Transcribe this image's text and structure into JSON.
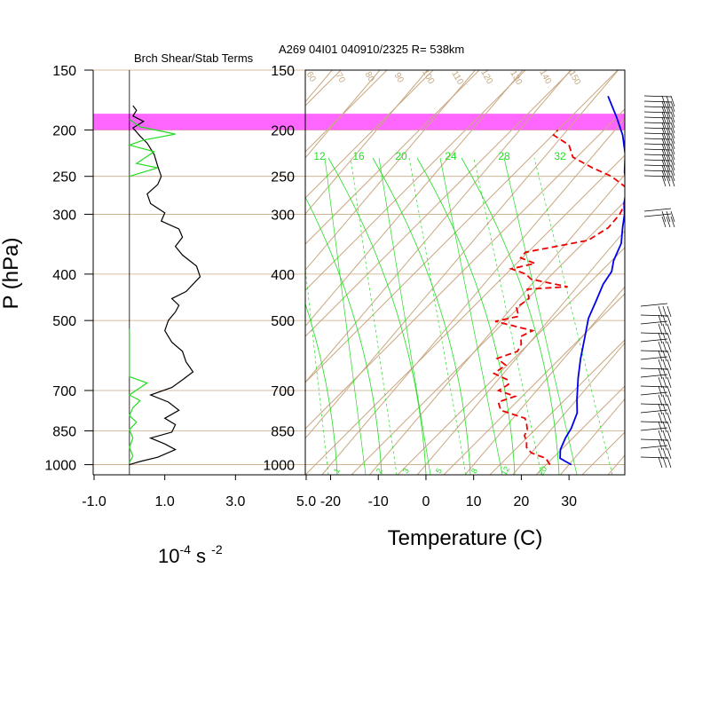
{
  "header": {
    "left_title": "Brch Shear/Stab Terms",
    "right_title": "A269 04I01 040910/2325 R= 538km"
  },
  "axes": {
    "p_label": "P (hPa)",
    "left_x_label_base": "10",
    "left_x_label_exp1": "-4",
    "left_x_label_unit": " s ",
    "left_x_label_exp2": "-2",
    "right_x_label": "Temperature (C)"
  },
  "colors": {
    "isotherm": "#c8a882",
    "mixing_ratio": "#22dd22",
    "temperature": "#0000ee",
    "dewpoint": "#ee0000",
    "highlight": "#ff55ff",
    "shear": "#000000",
    "stability": "#22dd22"
  },
  "chart_data": [
    {
      "type": "line",
      "panel": "left",
      "title": "Brch Shear/Stab Terms",
      "ylabel": "P (hPa)",
      "y_scale": "log",
      "ylim": [
        1050,
        150
      ],
      "y_ticks": [
        "150",
        "200",
        "250",
        "300",
        "400",
        "500",
        "700",
        "850",
        "1000"
      ],
      "x_ticks": [
        "-1.0",
        "1.0",
        "3.0",
        "5.0"
      ],
      "xlim": [
        -1.0,
        5.0
      ],
      "series": [
        {
          "color": "#000000",
          "points": [
            [
              0.0,
              1000
            ],
            [
              0.3,
              985
            ],
            [
              0.8,
              965
            ],
            [
              1.3,
              930
            ],
            [
              1.0,
              905
            ],
            [
              0.6,
              880
            ],
            [
              1.2,
              855
            ],
            [
              1.3,
              825
            ],
            [
              1.0,
              800
            ],
            [
              1.4,
              770
            ],
            [
              1.1,
              740
            ],
            [
              0.6,
              715
            ],
            [
              1.2,
              690
            ],
            [
              1.5,
              665
            ],
            [
              1.8,
              640
            ],
            [
              1.6,
              610
            ],
            [
              1.5,
              580
            ],
            [
              1.2,
              555
            ],
            [
              1.0,
              525
            ],
            [
              1.1,
              500
            ],
            [
              1.3,
              480
            ],
            [
              1.4,
              465
            ],
            [
              1.2,
              450
            ],
            [
              1.6,
              435
            ],
            [
              2.0,
              405
            ],
            [
              1.9,
              385
            ],
            [
              1.5,
              365
            ],
            [
              1.3,
              350
            ],
            [
              1.5,
              335
            ],
            [
              1.4,
              322
            ],
            [
              0.9,
              310
            ],
            [
              1.0,
              298
            ],
            [
              0.6,
              285
            ],
            [
              0.5,
              272
            ],
            [
              0.8,
              260
            ],
            [
              0.9,
              250
            ],
            [
              0.8,
              238
            ],
            [
              0.7,
              225
            ],
            [
              0.5,
              213
            ],
            [
              0.3,
              206
            ],
            [
              0.1,
              198
            ],
            [
              0.4,
              192
            ],
            [
              0.1,
              187
            ],
            [
              0.2,
              182
            ],
            [
              0.1,
              178
            ]
          ]
        },
        {
          "color": "#22dd22",
          "points": [
            [
              0.0,
              990
            ],
            [
              0.1,
              960
            ],
            [
              0.0,
              920
            ],
            [
              0.1,
              880
            ],
            [
              0.0,
              845
            ],
            [
              0.2,
              815
            ],
            [
              0.0,
              790
            ],
            [
              0.1,
              760
            ],
            [
              0.3,
              735
            ],
            [
              0.0,
              715
            ],
            [
              0.5,
              675
            ],
            [
              0.0,
              655
            ],
            [
              0.0,
              520
            ]
          ]
        },
        {
          "color": "#22dd22",
          "points": [
            [
              0.0,
              250
            ],
            [
              0.8,
              240
            ],
            [
              0.2,
              235
            ],
            [
              0.7,
              222
            ],
            [
              0.0,
              215
            ],
            [
              0.4,
              210
            ],
            [
              1.3,
              204
            ],
            [
              0.3,
              197
            ],
            [
              0.0,
              190
            ]
          ]
        }
      ],
      "highlight_band_hpa": [
        200,
        185
      ]
    },
    {
      "type": "line",
      "panel": "right",
      "title": "A269 04I01 040910/2325 R= 538km",
      "xlabel": "Temperature (C)",
      "y_scale": "log",
      "ylim": [
        1050,
        150
      ],
      "y_ticks": [
        "150",
        "200",
        "250",
        "300",
        "400",
        "500",
        "700",
        "850",
        "1000"
      ],
      "x_ticks": [
        "-20",
        "-10",
        "0",
        "10",
        "20",
        "30"
      ],
      "xlim": [
        -24,
        43
      ],
      "skew_deg": 45,
      "mixing_ratio_labels_top": [
        "12",
        "16",
        "20",
        "24",
        "28",
        "32"
      ],
      "mixing_ratio_labels_bottom": [
        "1",
        "2",
        "3",
        "5",
        "8",
        "12",
        "20"
      ],
      "isotherm_labels_top": [
        "60",
        "70",
        "80",
        "90",
        "100",
        "110",
        "120",
        "130",
        "140",
        "150"
      ],
      "series": [
        {
          "name": "temperature",
          "color": "#0000ee",
          "points": [
            [
              30.5,
              1000
            ],
            [
              27,
              970
            ],
            [
              25.5,
              930
            ],
            [
              24.5,
              880
            ],
            [
              24,
              840
            ],
            [
              22.5,
              780
            ],
            [
              20,
              730
            ],
            [
              16.5,
              660
            ],
            [
              13.5,
              600
            ],
            [
              10.5,
              540
            ],
            [
              8,
              495
            ],
            [
              6.5,
              455
            ],
            [
              5,
              420
            ],
            [
              4.5,
              395
            ],
            [
              3,
              375
            ],
            [
              1.5,
              345
            ],
            [
              -1,
              320
            ],
            [
              -3,
              300
            ],
            [
              -5,
              285
            ],
            [
              -7.5,
              262
            ],
            [
              -10.5,
              245
            ],
            [
              -13.5,
              225
            ],
            [
              -17.5,
              205
            ],
            [
              -22,
              188
            ],
            [
              -27.5,
              170
            ]
          ]
        },
        {
          "name": "dewpoint",
          "color": "#ee0000",
          "points": [
            [
              26,
              1000
            ],
            [
              24,
              970
            ],
            [
              20,
              945
            ],
            [
              18,
              920
            ],
            [
              17,
              895
            ],
            [
              15.5,
              870
            ],
            [
              15,
              845
            ],
            [
              14,
              825
            ],
            [
              12.5,
              800
            ],
            [
              6,
              770
            ],
            [
              4,
              740
            ],
            [
              6.5,
              720
            ],
            [
              2,
              700
            ],
            [
              3,
              680
            ],
            [
              2,
              665
            ],
            [
              -2,
              645
            ],
            [
              -1,
              620
            ],
            [
              -4,
              600
            ],
            [
              -1,
              580
            ],
            [
              -1.5,
              560
            ],
            [
              -3,
              540
            ],
            [
              -1.5,
              525
            ],
            [
              -11,
              502
            ],
            [
              -7,
              490
            ],
            [
              -9,
              470
            ],
            [
              -8,
              450
            ],
            [
              -10,
              430
            ],
            [
              -2,
              425
            ],
            [
              -11,
              410
            ],
            [
              -13,
              400
            ],
            [
              -17,
              390
            ],
            [
              -13,
              380
            ],
            [
              -17,
              370
            ],
            [
              -17,
              360
            ],
            [
              -6,
              340
            ],
            [
              -4,
              320
            ],
            [
              -4,
              300
            ],
            [
              -4.5,
              290
            ],
            [
              -5,
              280
            ],
            [
              -7,
              265
            ],
            [
              -12.5,
              250
            ],
            [
              -18,
              240
            ],
            [
              -24,
              228
            ],
            [
              -27,
              215
            ],
            [
              -32,
              205
            ],
            [
              -32,
              200
            ]
          ]
        }
      ]
    }
  ],
  "wind_barbs": {
    "upper_count": 16,
    "mid_count": 2,
    "lower_count": 18
  }
}
